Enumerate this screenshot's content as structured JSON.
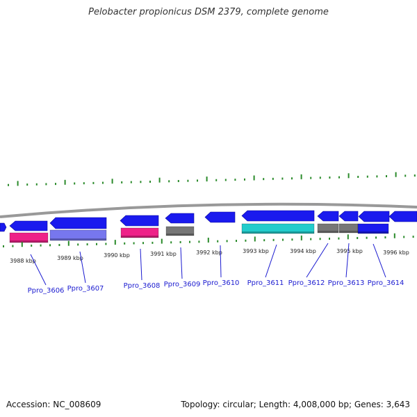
{
  "title": "Pelobacter propionicus DSM 2379, complete genome",
  "accession": "Accession: NC_008609",
  "summary": "Topology: circular; Length: 4,008,000 bp; Genes: 3,643",
  "colors": {
    "cds": "#1a1aee",
    "cds_light": "#7777ee",
    "pink": "#ee2288",
    "cyan": "#22cccc",
    "gray": "#777777",
    "backbone": "#999999",
    "tick": "#2a8a2a",
    "label": "#1a1ad0"
  },
  "kbp_labels": [
    "3988 kbp",
    "3989 kbp",
    "3990 kbp",
    "3991 kbp",
    "3992 kbp",
    "3993 kbp",
    "3994 kbp",
    "3995 kbp",
    "3996 kbp"
  ],
  "gene_labels": [
    "Ppro_3606",
    "Ppro_3607",
    "Ppro_3608",
    "Ppro_3609",
    "Ppro_3610",
    "Ppro_3611",
    "Ppro_3612",
    "Ppro_3613",
    "Ppro_3614"
  ]
}
